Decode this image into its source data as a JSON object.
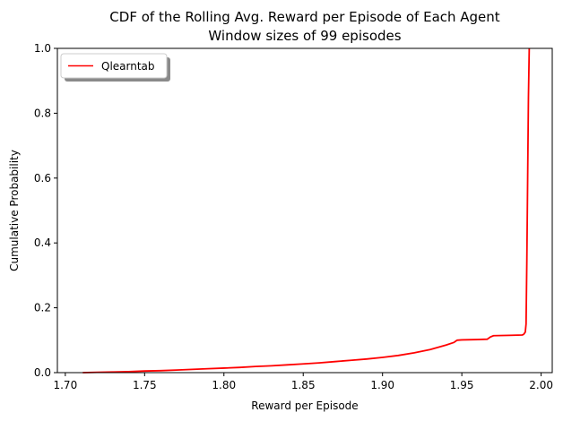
{
  "chart_data": {
    "type": "line",
    "title": "CDF of the Rolling Avg. Reward per Episode of Each Agent",
    "subtitle": "Window sizes of 99 episodes",
    "xlabel": "Reward per Episode",
    "ylabel": "Cumulative Probability",
    "xlim": [
      1.695,
      2.007
    ],
    "ylim": [
      0,
      1
    ],
    "xticks": [
      "1.70",
      "1.75",
      "1.80",
      "1.85",
      "1.90",
      "1.95",
      "2.00"
    ],
    "yticks": [
      "0.0",
      "0.2",
      "0.4",
      "0.6",
      "0.8",
      "1.0"
    ],
    "grid": false,
    "legend_position": "upper-left",
    "series": [
      {
        "name": "Qlearntab",
        "color": "#ff0000",
        "x": [
          1.711,
          1.72,
          1.73,
          1.74,
          1.75,
          1.76,
          1.77,
          1.78,
          1.79,
          1.8,
          1.81,
          1.82,
          1.83,
          1.84,
          1.85,
          1.86,
          1.87,
          1.88,
          1.89,
          1.9,
          1.91,
          1.92,
          1.93,
          1.94,
          1.945,
          1.947,
          1.95,
          1.96,
          1.966,
          1.968,
          1.97,
          1.98,
          1.988,
          1.989,
          1.99,
          1.9905,
          1.991,
          1.9915,
          1.992,
          1.9925
        ],
        "y": [
          0.0,
          0.001,
          0.002,
          0.003,
          0.005,
          0.006,
          0.008,
          0.01,
          0.012,
          0.014,
          0.016,
          0.019,
          0.021,
          0.024,
          0.027,
          0.03,
          0.034,
          0.038,
          0.042,
          0.047,
          0.053,
          0.061,
          0.071,
          0.085,
          0.093,
          0.1,
          0.101,
          0.102,
          0.103,
          0.11,
          0.114,
          0.115,
          0.116,
          0.118,
          0.125,
          0.15,
          0.35,
          0.6,
          0.85,
          1.0
        ]
      }
    ]
  }
}
